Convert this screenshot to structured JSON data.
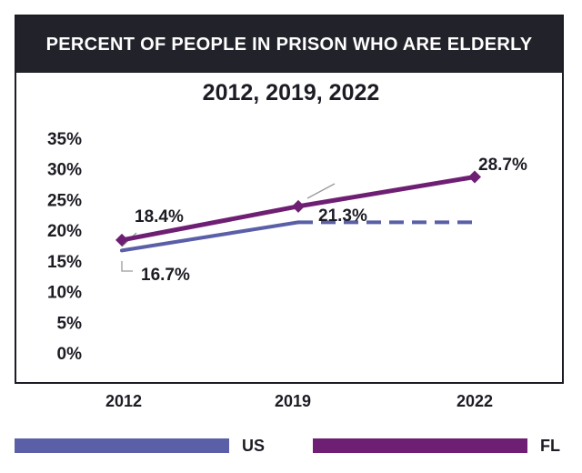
{
  "chart_data": {
    "type": "line",
    "title": "PERCENT OF PEOPLE IN PRISON WHO ARE ELDERLY",
    "subtitle": "2012, 2019, 2022",
    "x": [
      "2012",
      "2019",
      "2022"
    ],
    "yticks": [
      "35%",
      "30%",
      "25%",
      "20%",
      "15%",
      "10%",
      "5%",
      "0%"
    ],
    "ylim": [
      0,
      35
    ],
    "series": [
      {
        "name": "US",
        "color": "#5a5fa8",
        "values": [
          16.7,
          21.3,
          21.3
        ],
        "labels": [
          "16.7%",
          "21.3%",
          ""
        ],
        "dashed_from_index": 1
      },
      {
        "name": "FL",
        "color": "#6e1f73",
        "values": [
          18.4,
          23.9,
          28.7
        ],
        "labels": [
          "18.4%",
          "",
          "28.7%"
        ]
      }
    ],
    "legend_position": "bottom"
  }
}
